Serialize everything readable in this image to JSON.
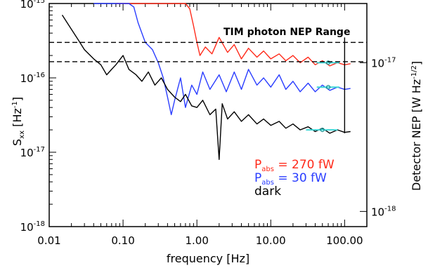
{
  "chart_data": {
    "type": "line",
    "title": "",
    "xlabel": "frequency [Hz]",
    "ylabel_main": "S",
    "ylabel_sub": "xx",
    "ylabel_unit": " [Hz",
    "ylabel_unit_exp": "-1",
    "ylabel_unit_close": "]",
    "y2label": "Detector NEP [W Hz",
    "y2label_exp": "-1/2",
    "y2label_close": "]",
    "x_scale": "log",
    "y_scale": "log",
    "xlim": [
      0.01,
      200
    ],
    "ylim": [
      1e-18,
      1e-15
    ],
    "y2_ticks": [
      {
        "base": "10",
        "exp": "-17",
        "value": 1.6e-16
      },
      {
        "base": "10",
        "exp": "-18",
        "value": 1.6e-18
      }
    ],
    "x_ticks": [
      {
        "value": 0.01,
        "label": "0.01"
      },
      {
        "value": 0.1,
        "label": "0.10"
      },
      {
        "value": 1,
        "label": "1.00"
      },
      {
        "value": 10,
        "label": "10.00"
      },
      {
        "value": 100,
        "label": "100.00"
      }
    ],
    "y_ticks": [
      {
        "value": 1e-15,
        "base": "10",
        "exp": "-15"
      },
      {
        "value": 1e-16,
        "base": "10",
        "exp": "-16"
      },
      {
        "value": 1e-17,
        "base": "10",
        "exp": "-17"
      },
      {
        "value": 1e-18,
        "base": "10",
        "exp": "-18"
      }
    ],
    "annotation": "TIM photon NEP Range",
    "nep_range_lines": [
      3e-16,
      1.65e-16
    ],
    "legend": [
      {
        "label": "P",
        "sub": "abs",
        "value": " = 270 fW",
        "color": "#ff2a1a"
      },
      {
        "label": "P",
        "sub": "abs",
        "value": " = 30 fW",
        "color": "#2a3dff"
      },
      {
        "label": "dark",
        "sub": "",
        "value": "",
        "color": "#000000"
      }
    ],
    "series": [
      {
        "color": "#ff2a1a",
        "x": [
          0.08,
          0.12,
          0.2,
          0.35,
          0.55,
          0.7,
          0.8,
          0.9,
          1.0,
          1.1,
          1.3,
          1.6,
          2.0,
          2.6,
          3.2,
          4.0,
          5.0,
          6.5,
          8.0,
          10,
          13,
          16,
          20,
          25,
          32,
          40,
          50,
          63,
          80,
          100,
          120
        ],
        "y": [
          2e-15,
          1.8e-15,
          1.6e-15,
          1.5e-15,
          1.4e-15,
          1.1e-15,
          8.5e-16,
          5e-16,
          3e-16,
          2e-16,
          2.6e-16,
          2.1e-16,
          3.5e-16,
          2.2e-16,
          2.8e-16,
          1.8e-16,
          2.5e-16,
          1.9e-16,
          2.3e-16,
          1.8e-16,
          2.1e-16,
          1.7e-16,
          2e-16,
          1.6e-16,
          1.9e-16,
          1.5e-16,
          1.7e-16,
          1.45e-16,
          1.6e-16,
          1.5e-16,
          1.55e-16
        ]
      },
      {
        "color": "#2a3dff",
        "x": [
          0.04,
          0.045,
          0.05,
          0.055,
          0.06,
          0.08,
          0.1,
          0.12,
          0.14,
          0.16,
          0.2,
          0.25,
          0.3,
          0.35,
          0.4,
          0.45,
          0.5,
          0.6,
          0.7,
          0.85,
          1.0,
          1.2,
          1.5,
          2.0,
          2.5,
          3.2,
          4.0,
          5.0,
          6.5,
          8.0,
          10,
          13,
          16,
          20,
          25,
          32,
          40,
          50,
          63,
          80,
          100,
          120
        ],
        "y": [
          1.5e-15,
          1.2e-15,
          1.05e-15,
          1.2e-15,
          1.4e-15,
          1.6e-15,
          1.5e-15,
          1.2e-15,
          9e-16,
          5.5e-16,
          3e-16,
          2.4e-16,
          1.6e-16,
          1e-16,
          5.5e-17,
          3.2e-17,
          5e-17,
          1e-16,
          4e-17,
          8e-17,
          6e-17,
          1.2e-16,
          7e-17,
          1.1e-16,
          6.5e-17,
          1.2e-16,
          7e-17,
          1.3e-16,
          8e-17,
          1e-16,
          7.5e-17,
          1.1e-16,
          7e-17,
          9e-17,
          6.5e-17,
          8.5e-17,
          6.5e-17,
          8e-17,
          6.8e-17,
          7.5e-17,
          7e-17,
          7.2e-17
        ]
      },
      {
        "color": "#000000",
        "x": [
          0.015,
          0.02,
          0.025,
          0.03,
          0.04,
          0.05,
          0.06,
          0.07,
          0.08,
          0.1,
          0.12,
          0.15,
          0.18,
          0.22,
          0.27,
          0.33,
          0.4,
          0.5,
          0.6,
          0.7,
          0.85,
          1.0,
          1.2,
          1.5,
          1.8,
          2.0,
          2.2,
          2.6,
          3.2,
          4.0,
          5.0,
          6.5,
          8.0,
          10,
          13,
          16,
          20,
          25,
          32,
          40,
          50,
          63,
          80,
          100,
          120
        ],
        "y": [
          7e-16,
          4.5e-16,
          3.2e-16,
          2.4e-16,
          1.8e-16,
          1.5e-16,
          1.1e-16,
          1.3e-16,
          1.5e-16,
          2e-16,
          1.3e-16,
          1.1e-16,
          9e-17,
          1.2e-16,
          8e-17,
          1e-16,
          7e-17,
          5.5e-17,
          4.8e-17,
          6e-17,
          4.2e-17,
          4e-17,
          5e-17,
          3.2e-17,
          3.8e-17,
          8e-18,
          4.5e-17,
          2.8e-17,
          3.5e-17,
          2.6e-17,
          3.2e-17,
          2.4e-17,
          2.8e-17,
          2.3e-17,
          2.6e-17,
          2.1e-17,
          2.4e-17,
          2e-17,
          2.2e-17,
          1.9e-17,
          2.1e-17,
          1.8e-17,
          2e-17,
          1.85e-17,
          1.9e-17
        ]
      }
    ],
    "cyan_markers": {
      "color": "#3fd6d6",
      "points": [
        {
          "x": 60,
          "y": 1.6e-16,
          "xerr": [
            42,
            85
          ]
        },
        {
          "x": 60,
          "y": 7.5e-17,
          "xerr": [
            42,
            85
          ]
        },
        {
          "x": 50,
          "y": 2e-17,
          "xerr": [
            30,
            80
          ]
        }
      ]
    },
    "spike": {
      "x": 100,
      "y_top": 3.5e-16,
      "y_bottom": 1.8e-17
    }
  }
}
